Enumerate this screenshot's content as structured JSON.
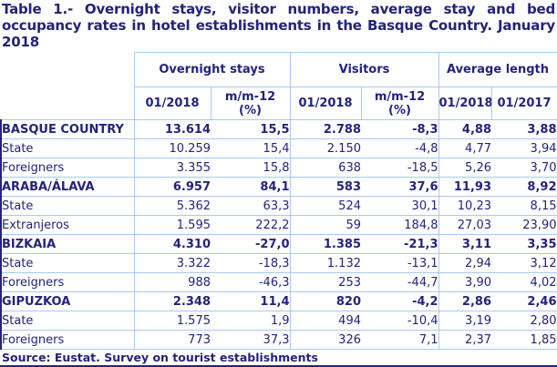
{
  "title": "Table 1.- Overnight stays, visitor numbers, average stay and bed occupancy rates in hotel establishments in the Basque Country. January 2018",
  "colors": {
    "text_navy": "#23237c",
    "border_light_blue": "#a6caf0",
    "background": "#ffffff"
  },
  "table": {
    "groups": [
      {
        "label": "Overnight stays",
        "subcols": [
          "01/2018",
          "m/m-12\n(%)"
        ]
      },
      {
        "label": "Visitors",
        "subcols": [
          "01/2018",
          "m/m-12\n(%)"
        ]
      },
      {
        "label": "Average length",
        "subcols": [
          "01/2018",
          "01/2017"
        ]
      }
    ],
    "rows": [
      {
        "label": "BASQUE COUNTRY",
        "bold": true,
        "values": [
          "13.614",
          "15,5",
          "2.788",
          "-8,3",
          "4,88",
          "3,88"
        ]
      },
      {
        "label": "State",
        "bold": false,
        "values": [
          "10.259",
          "15,4",
          "2.150",
          "-4,8",
          "4,77",
          "3,94"
        ]
      },
      {
        "label": "Foreigners",
        "bold": false,
        "values": [
          "3.355",
          "15,8",
          "638",
          "-18,5",
          "5,26",
          "3,70"
        ]
      },
      {
        "label": "ARABA/ÁLAVA",
        "bold": true,
        "values": [
          "6.957",
          "84,1",
          "583",
          "37,6",
          "11,93",
          "8,92"
        ]
      },
      {
        "label": "State",
        "bold": false,
        "values": [
          "5.362",
          "63,3",
          "524",
          "30,1",
          "10,23",
          "8,15"
        ]
      },
      {
        "label": "Extranjeros",
        "bold": false,
        "values": [
          "1.595",
          "222,2",
          "59",
          "184,8",
          "27,03",
          "23,90"
        ]
      },
      {
        "label": "BIZKAIA",
        "bold": true,
        "values": [
          "4.310",
          "-27,0",
          "1.385",
          "-21,3",
          "3,11",
          "3,35"
        ]
      },
      {
        "label": "State",
        "bold": false,
        "values": [
          "3.322",
          "-18,3",
          "1.132",
          "-13,1",
          "2,94",
          "3,12"
        ]
      },
      {
        "label": "Foreigners",
        "bold": false,
        "values": [
          "988",
          "-46,3",
          "253",
          "-44,7",
          "3,90",
          "4,02"
        ]
      },
      {
        "label": "GIPUZKOA",
        "bold": true,
        "values": [
          "2.348",
          "11,4",
          "820",
          "-4,2",
          "2,86",
          "2,46"
        ]
      },
      {
        "label": "State",
        "bold": false,
        "values": [
          "1.575",
          "1,9",
          "494",
          "-10,4",
          "3,19",
          "2,80"
        ]
      },
      {
        "label": "Foreigners",
        "bold": false,
        "values": [
          "773",
          "37,3",
          "326",
          "7,1",
          "2,37",
          "1,85"
        ]
      }
    ]
  },
  "source": "Source: Eustat. Survey on tourist establishments"
}
